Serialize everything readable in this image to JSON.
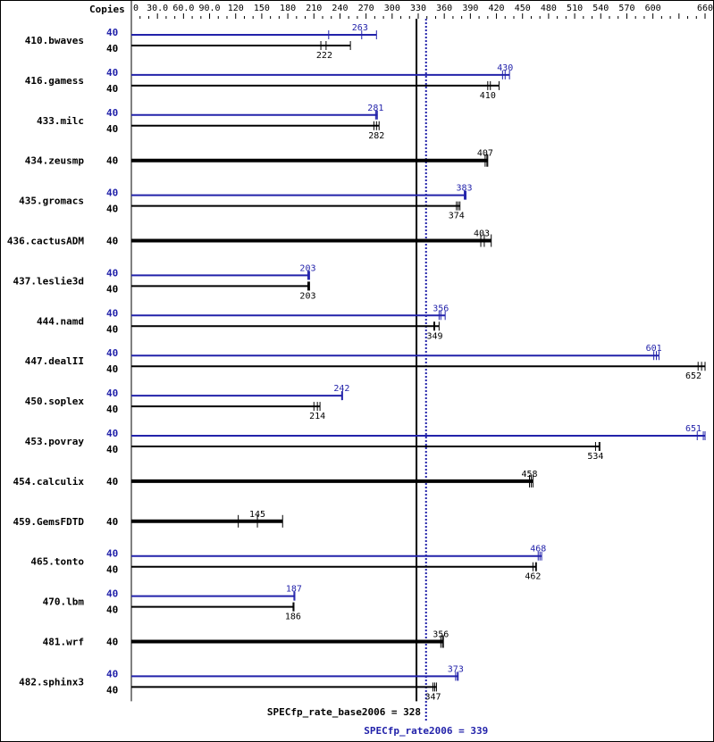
{
  "chart_data": {
    "type": "bar",
    "orientation": "horizontal",
    "copies_header": "Copies",
    "xlim": [
      0,
      660
    ],
    "ticks": [
      "0",
      "30.0",
      "60.0",
      "90.0",
      "120",
      "150",
      "180",
      "210",
      "240",
      "270",
      "300",
      "330",
      "360",
      "390",
      "420",
      "450",
      "480",
      "510",
      "540",
      "570",
      "600",
      "660"
    ],
    "tick_values": [
      0,
      30,
      60,
      90,
      120,
      150,
      180,
      210,
      240,
      270,
      300,
      330,
      360,
      390,
      420,
      450,
      480,
      510,
      540,
      570,
      600,
      660
    ],
    "colors": {
      "base": "#000000",
      "peak": "#2222aa"
    },
    "benchmarks": [
      {
        "name": "410.bwaves",
        "peak": {
          "copies": "40",
          "value": 263,
          "runs": [
            227,
            265,
            282
          ]
        },
        "base": {
          "copies": "40",
          "value": 222,
          "runs": [
            218,
            224,
            252
          ]
        }
      },
      {
        "name": "416.gamess",
        "peak": {
          "copies": "40",
          "value": 430,
          "runs": [
            427,
            430,
            435
          ]
        },
        "base": {
          "copies": "40",
          "value": 410,
          "runs": [
            410,
            413,
            423
          ]
        }
      },
      {
        "name": "433.milc",
        "peak": {
          "copies": "40",
          "value": 281,
          "runs": [
            281,
            282,
            283
          ]
        },
        "base": {
          "copies": "40",
          "value": 282,
          "runs": [
            279,
            282,
            285
          ]
        }
      },
      {
        "name": "434.zeusmp",
        "peak": null,
        "base": {
          "copies": "40",
          "value": 407,
          "runs": [
            407,
            409,
            410
          ]
        }
      },
      {
        "name": "435.gromacs",
        "peak": {
          "copies": "40",
          "value": 383,
          "runs": [
            383,
            384,
            385
          ]
        },
        "base": {
          "copies": "40",
          "value": 374,
          "runs": [
            374,
            376,
            378
          ]
        }
      },
      {
        "name": "436.cactusADM",
        "peak": null,
        "base": {
          "copies": "40",
          "value": 403,
          "runs": [
            402,
            406,
            414
          ]
        }
      },
      {
        "name": "437.leslie3d",
        "peak": {
          "copies": "40",
          "value": 203,
          "runs": [
            203,
            204,
            205
          ]
        },
        "base": {
          "copies": "40",
          "value": 203,
          "runs": [
            203,
            204,
            205
          ]
        }
      },
      {
        "name": "444.namd",
        "peak": {
          "copies": "40",
          "value": 356,
          "runs": [
            354,
            356,
            361
          ]
        },
        "base": {
          "copies": "40",
          "value": 349,
          "runs": [
            348,
            349,
            354
          ]
        }
      },
      {
        "name": "447.dealII",
        "peak": {
          "copies": "40",
          "value": 601,
          "runs": [
            601,
            604,
            607
          ]
        },
        "base": {
          "copies": "40",
          "value": 652,
          "runs": [
            652,
            656,
            660
          ]
        }
      },
      {
        "name": "450.soplex",
        "peak": {
          "copies": "40",
          "value": 242,
          "runs": [
            242,
            242,
            243
          ]
        },
        "base": {
          "copies": "40",
          "value": 214,
          "runs": [
            210,
            214,
            217
          ]
        }
      },
      {
        "name": "453.povray",
        "peak": {
          "copies": "40",
          "value": 651,
          "runs": [
            651,
            658,
            660
          ]
        },
        "base": {
          "copies": "40",
          "value": 534,
          "runs": [
            534,
            538,
            539
          ]
        }
      },
      {
        "name": "454.calculix",
        "peak": null,
        "base": {
          "copies": "40",
          "value": 458,
          "runs": [
            458,
            460,
            462
          ]
        }
      },
      {
        "name": "459.GemsFDTD",
        "peak": null,
        "base": {
          "copies": "40",
          "value": 145,
          "runs": [
            123,
            145,
            174
          ]
        }
      },
      {
        "name": "465.tonto",
        "peak": {
          "copies": "40",
          "value": 468,
          "runs": [
            468,
            470,
            472
          ]
        },
        "base": {
          "copies": "40",
          "value": 462,
          "runs": [
            462,
            465,
            466
          ]
        }
      },
      {
        "name": "470.lbm",
        "peak": {
          "copies": "40",
          "value": 187,
          "runs": [
            187,
            188,
            188
          ]
        },
        "base": {
          "copies": "40",
          "value": 186,
          "runs": [
            186,
            187,
            187
          ]
        }
      },
      {
        "name": "481.wrf",
        "peak": null,
        "base": {
          "copies": "40",
          "value": 356,
          "runs": [
            356,
            358,
            359
          ]
        }
      },
      {
        "name": "482.sphinx3",
        "peak": {
          "copies": "40",
          "value": 373,
          "runs": [
            373,
            375,
            376
          ]
        },
        "base": {
          "copies": "40",
          "value": 347,
          "runs": [
            347,
            349,
            351
          ]
        }
      }
    ],
    "base_metric": {
      "label": "SPECfp_rate_base2006 = 328",
      "value": 328
    },
    "peak_metric": {
      "label": "SPECfp_rate2006 = 339",
      "value": 339
    }
  }
}
